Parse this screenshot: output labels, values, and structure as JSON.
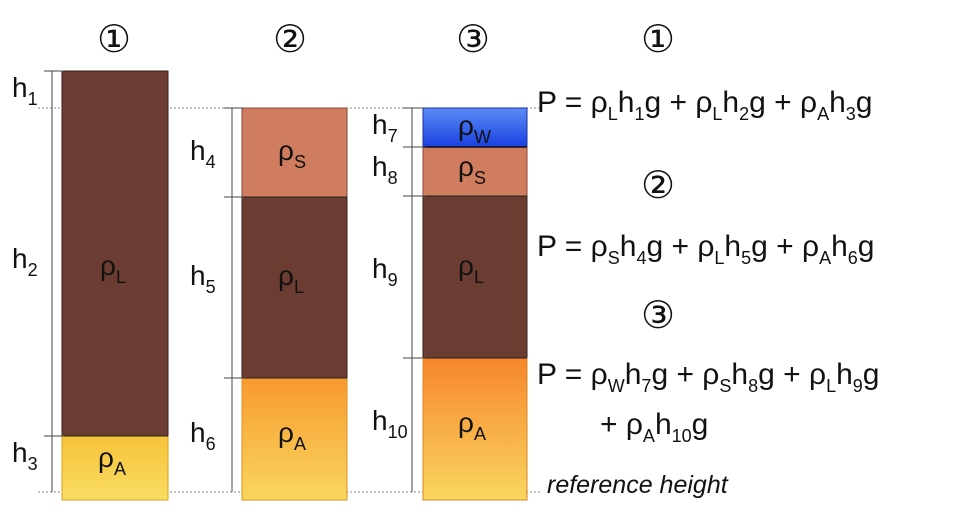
{
  "columns": [
    {
      "marker": "①",
      "layers": [
        {
          "density": "ρ",
          "sub": "L",
          "height": "h",
          "hsub": "2",
          "color": "#6b3d32"
        },
        {
          "density": "ρ",
          "sub": "A",
          "height": "h",
          "hsub": "3",
          "color": "#f7c338"
        }
      ],
      "top_height": {
        "height": "h",
        "hsub": "1"
      }
    },
    {
      "marker": "②",
      "layers": [
        {
          "density": "ρ",
          "sub": "S",
          "height": "h",
          "hsub": "4",
          "color": "#d07c5e"
        },
        {
          "density": "ρ",
          "sub": "L",
          "height": "h",
          "hsub": "5",
          "color": "#6b3d32"
        },
        {
          "density": "ρ",
          "sub": "A",
          "height": "h",
          "hsub": "6",
          "color": "#f7a83a"
        }
      ]
    },
    {
      "marker": "③",
      "layers": [
        {
          "density": "ρ",
          "sub": "W",
          "height": "h",
          "hsub": "7",
          "color": "#1f56f0"
        },
        {
          "density": "ρ",
          "sub": "S",
          "height": "h",
          "hsub": "8",
          "color": "#d07c5e"
        },
        {
          "density": "ρ",
          "sub": "L",
          "height": "h",
          "hsub": "9",
          "color": "#6b3d32"
        },
        {
          "density": "ρ",
          "sub": "A",
          "height": "h",
          "hsub": "10",
          "color": "#f79838"
        }
      ]
    }
  ],
  "reference_label": "reference height",
  "equations": [
    {
      "marker": "①",
      "lines": [
        [
          {
            "t": "P = ρ"
          },
          {
            "s": "L"
          },
          {
            "t": "h"
          },
          {
            "s": "1"
          },
          {
            "t": "g + ρ"
          },
          {
            "s": "L"
          },
          {
            "t": "h"
          },
          {
            "s": "2"
          },
          {
            "t": "g + ρ"
          },
          {
            "s": "A"
          },
          {
            "t": "h"
          },
          {
            "s": "3"
          },
          {
            "t": "g"
          }
        ]
      ]
    },
    {
      "marker": "②",
      "lines": [
        [
          {
            "t": "P = ρ"
          },
          {
            "s": "S"
          },
          {
            "t": "h"
          },
          {
            "s": "4"
          },
          {
            "t": "g + ρ"
          },
          {
            "s": "L"
          },
          {
            "t": "h"
          },
          {
            "s": "5"
          },
          {
            "t": "g + ρ"
          },
          {
            "s": "A"
          },
          {
            "t": "h"
          },
          {
            "s": "6"
          },
          {
            "t": "g"
          }
        ]
      ]
    },
    {
      "marker": "③",
      "lines": [
        [
          {
            "t": "P = ρ"
          },
          {
            "s": "W"
          },
          {
            "t": "h"
          },
          {
            "s": "7"
          },
          {
            "t": "g + ρ"
          },
          {
            "s": "S"
          },
          {
            "t": "h"
          },
          {
            "s": "8"
          },
          {
            "t": "g + ρ"
          },
          {
            "s": "L"
          },
          {
            "t": "h"
          },
          {
            "s": "9"
          },
          {
            "t": "g"
          }
        ],
        [
          {
            "t": "+ ρ"
          },
          {
            "s": "A"
          },
          {
            "t": "h"
          },
          {
            "s": "10"
          },
          {
            "t": "g"
          }
        ]
      ]
    }
  ]
}
